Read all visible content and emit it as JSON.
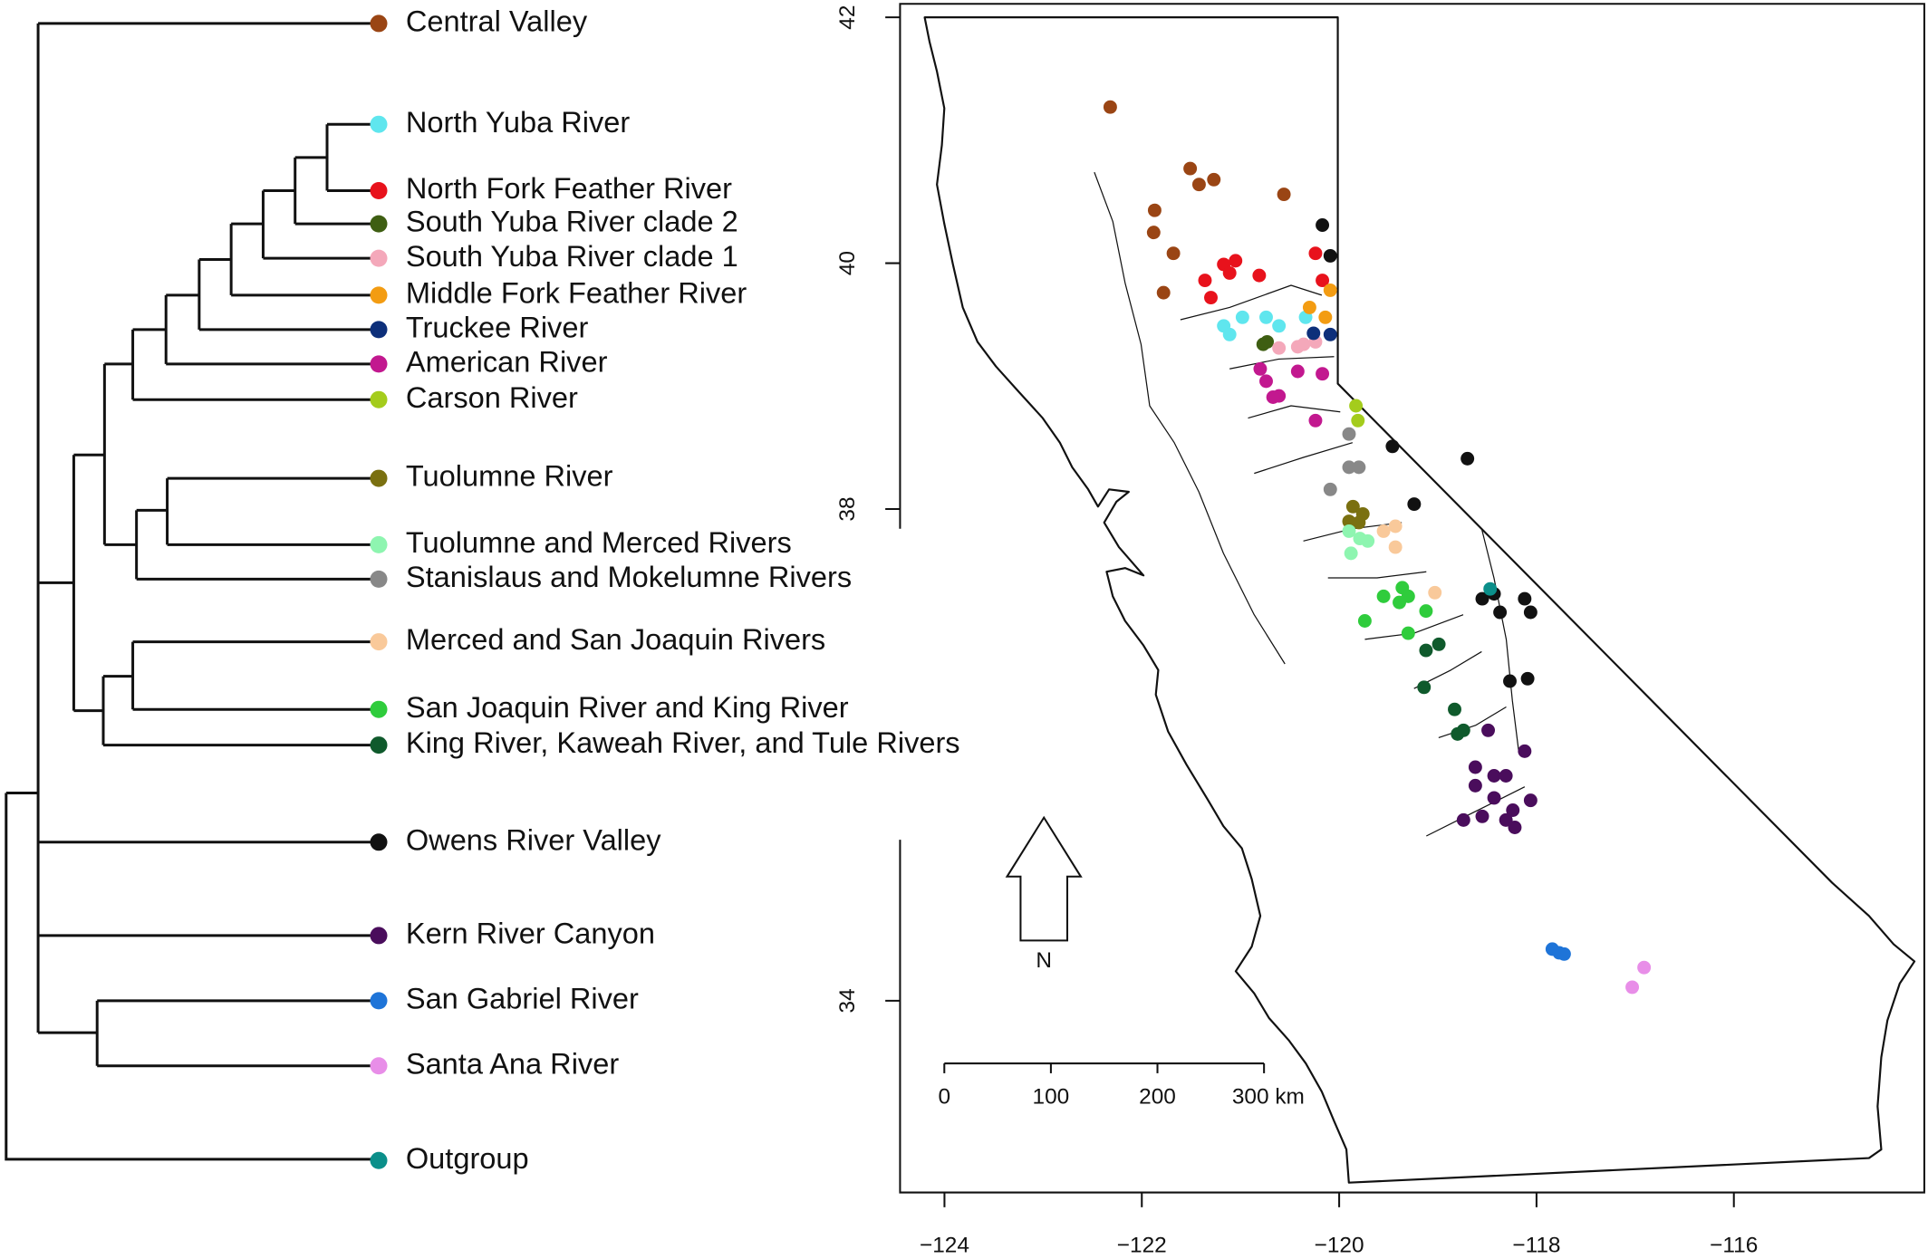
{
  "clades": [
    {
      "name": "Central Valley",
      "color": "#9a4514",
      "lon": [
        -122.32,
        -121.51,
        -121.42,
        -121.27,
        -121.87,
        -121.88,
        -121.68,
        -121.78,
        -120.56
      ],
      "lat": [
        41.27,
        40.77,
        40.64,
        40.68,
        40.43,
        40.25,
        40.08,
        39.76,
        40.56
      ]
    },
    {
      "name": "North Yuba River",
      "color": "#5fe6ee",
      "lon": [
        -121.17,
        -120.98,
        -120.74,
        -120.61,
        -121.11,
        -120.34
      ],
      "lat": [
        39.49,
        39.56,
        39.56,
        39.49,
        39.42,
        39.56
      ]
    },
    {
      "name": "North Fork Feather River",
      "color": "#e8121c",
      "lon": [
        -121.17,
        -121.05,
        -121.11,
        -121.36,
        -121.3,
        -120.81,
        -120.24,
        -120.17
      ],
      "lat": [
        39.99,
        40.02,
        39.92,
        39.86,
        39.72,
        39.9,
        40.08,
        39.86
      ]
    },
    {
      "name": "South Yuba River clade 2",
      "color": "#3e5e12",
      "lon": [
        -120.77,
        -120.73
      ],
      "lat": [
        39.34,
        39.36
      ]
    },
    {
      "name": "South Yuba River clade 1",
      "color": "#f4a8ba",
      "lon": [
        -120.61,
        -120.42,
        -120.36,
        -120.24
      ],
      "lat": [
        39.31,
        39.32,
        39.34,
        39.36
      ]
    },
    {
      "name": "Middle Fork Feather River",
      "color": "#f39c12",
      "lon": [
        -120.3,
        -120.09,
        -120.14
      ],
      "lat": [
        39.64,
        39.78,
        39.56
      ]
    },
    {
      "name": "Truckee River",
      "color": "#0d2f7a",
      "lon": [
        -120.26,
        -120.09
      ],
      "lat": [
        39.43,
        39.42
      ]
    },
    {
      "name": "American River",
      "color": "#c2188f",
      "lon": [
        -120.8,
        -120.74,
        -120.61,
        -120.67,
        -120.42,
        -120.17,
        -120.24
      ],
      "lat": [
        39.14,
        39.04,
        38.92,
        38.91,
        39.12,
        39.1,
        38.72
      ]
    },
    {
      "name": "Carson River",
      "color": "#a4cc1c",
      "lon": [
        -119.83,
        -119.81
      ],
      "lat": [
        38.84,
        38.72
      ]
    },
    {
      "name": "Tuolumne River",
      "color": "#7a7010",
      "lon": [
        -119.86,
        -119.76,
        -119.8,
        -119.9
      ],
      "lat": [
        38.02,
        37.96,
        37.89,
        37.9
      ]
    },
    {
      "name": "Tuolumne and Merced Rivers",
      "color": "#8ef5b0",
      "lon": [
        -119.9,
        -119.79,
        -119.71,
        -119.88
      ],
      "lat": [
        37.82,
        37.76,
        37.74,
        37.64
      ]
    },
    {
      "name": "Stanislaus and Mokelumne Rivers",
      "color": "#888888",
      "lon": [
        -119.9,
        -119.9,
        -119.8,
        -120.09
      ],
      "lat": [
        38.61,
        38.34,
        38.34,
        38.16
      ]
    },
    {
      "name": "Merced and San Joaquin Rivers",
      "color": "#f9c99a",
      "lon": [
        -119.55,
        -119.43,
        -119.43,
        -119.03
      ],
      "lat": [
        37.82,
        37.86,
        37.69,
        37.32
      ]
    },
    {
      "name": "San Joaquin River and King River",
      "color": "#2fcc3c",
      "lon": [
        -119.55,
        -119.36,
        -119.3,
        -119.39,
        -119.74,
        -119.3,
        -119.12
      ],
      "lat": [
        37.29,
        37.36,
        37.29,
        37.24,
        37.09,
        36.99,
        37.17
      ]
    },
    {
      "name": "King River, Kaweah River, and Tule Rivers",
      "color": "#0f5a2c",
      "lon": [
        -119.12,
        -118.99,
        -119.14,
        -118.83,
        -118.74,
        -118.8
      ],
      "lat": [
        36.85,
        36.9,
        36.55,
        36.37,
        36.2,
        36.17
      ]
    },
    {
      "name": "Owens River Valley",
      "color": "#111111",
      "lon": [
        -120.17,
        -120.09,
        -119.46,
        -118.7,
        -119.24,
        -118.55,
        -118.43,
        -118.37,
        -118.12,
        -118.06,
        -118.27,
        -118.09
      ],
      "lat": [
        40.31,
        40.06,
        38.51,
        38.41,
        38.04,
        37.27,
        37.31,
        37.16,
        37.27,
        37.16,
        36.6,
        36.62
      ]
    },
    {
      "name": "Kern River Canyon",
      "color": "#4a0d5c",
      "lon": [
        -118.49,
        -118.62,
        -118.43,
        -118.62,
        -118.31,
        -118.12,
        -118.43,
        -118.24,
        -118.06,
        -118.74,
        -118.55,
        -118.31,
        -118.22
      ],
      "lat": [
        36.2,
        35.9,
        35.83,
        35.75,
        35.83,
        36.03,
        35.65,
        35.55,
        35.63,
        35.47,
        35.5,
        35.47,
        35.41
      ]
    },
    {
      "name": "San Gabriel River",
      "color": "#1e74d8",
      "lon": [
        -117.84,
        -117.77,
        -117.72
      ],
      "lat": [
        34.42,
        34.39,
        34.38
      ]
    },
    {
      "name": "Santa Ana River",
      "color": "#e88ee8",
      "lon": [
        -116.91,
        -117.03
      ],
      "lat": [
        34.27,
        34.11
      ]
    },
    {
      "name": "Outgroup",
      "color": "#0b8f8a",
      "lon": [
        -118.47
      ],
      "lat": [
        37.35
      ]
    }
  ],
  "map": {
    "xlim": [
      -124.45,
      -114.07
    ],
    "ylim": [
      32.44,
      42.11
    ],
    "xticks": [
      {
        "value": -124,
        "label": "−124"
      },
      {
        "value": -122,
        "label": "−122"
      },
      {
        "value": -120,
        "label": "−120"
      },
      {
        "value": -118,
        "label": "−118"
      },
      {
        "value": -116,
        "label": "−116"
      }
    ],
    "yticks": [
      34,
      38,
      40,
      42
    ],
    "scale_bar": {
      "ticks": [
        0,
        100,
        200,
        {
          "value": 300,
          "label": "300 km"
        }
      ]
    },
    "north_label": "N"
  }
}
